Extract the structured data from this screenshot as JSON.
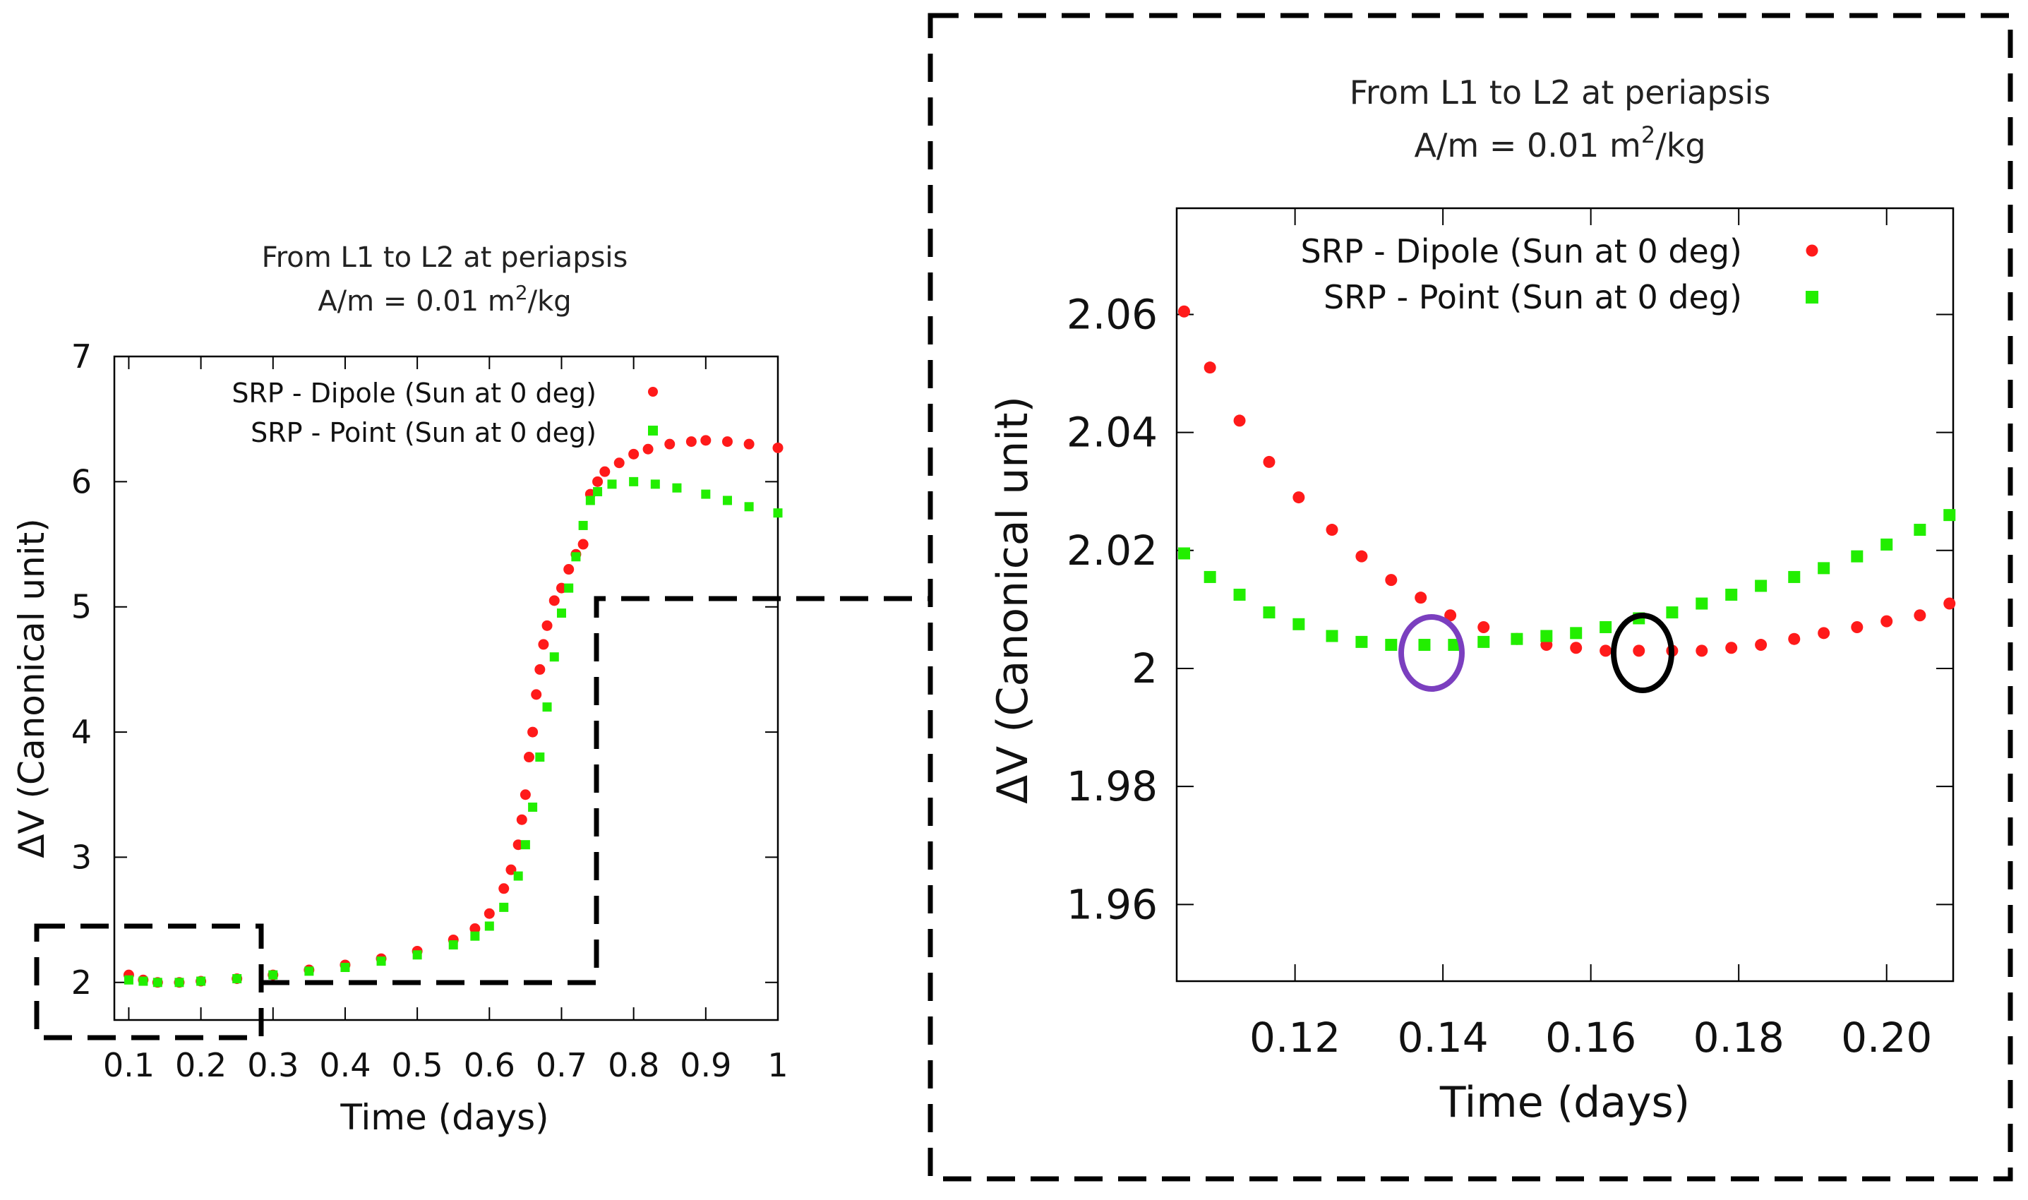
{
  "chart_data": [
    {
      "type": "scatter",
      "title": "From L1 to L2 at periapsis",
      "subtitle": {
        "prefix": "A/m = 0.01 m",
        "sup": "2",
        "suffix": "/kg"
      },
      "xlabel": "Time (days)",
      "ylabel": "ΔV (Canonical unit)",
      "xlim": [
        0.08,
        1.0
      ],
      "ylim": [
        1.7,
        7.0
      ],
      "xticks": [
        "0.1",
        "0.2",
        "0.3",
        "0.4",
        "0.5",
        "0.6",
        "0.7",
        "0.8",
        "0.9",
        "1"
      ],
      "yticks": [
        "2",
        "3",
        "4",
        "5",
        "6",
        "7"
      ],
      "legend_position": "top-right",
      "series": [
        {
          "name": "SRP - Dipole (Sun at 0 deg)",
          "marker": "circle",
          "color": "#ff1a1a",
          "x": [
            0.1,
            0.12,
            0.14,
            0.17,
            0.2,
            0.25,
            0.3,
            0.35,
            0.4,
            0.45,
            0.5,
            0.55,
            0.58,
            0.6,
            0.62,
            0.63,
            0.64,
            0.645,
            0.65,
            0.655,
            0.66,
            0.665,
            0.67,
            0.675,
            0.68,
            0.69,
            0.7,
            0.71,
            0.72,
            0.73,
            0.74,
            0.75,
            0.76,
            0.78,
            0.8,
            0.82,
            0.85,
            0.88,
            0.9,
            0.93,
            0.96,
            1.0
          ],
          "y": [
            2.06,
            2.02,
            2.0,
            2.0,
            2.01,
            2.03,
            2.06,
            2.1,
            2.14,
            2.19,
            2.25,
            2.34,
            2.43,
            2.55,
            2.75,
            2.9,
            3.1,
            3.3,
            3.5,
            3.8,
            4.0,
            4.3,
            4.5,
            4.7,
            4.85,
            5.05,
            5.15,
            5.3,
            5.42,
            5.5,
            5.9,
            6.0,
            6.08,
            6.15,
            6.22,
            6.26,
            6.3,
            6.32,
            6.33,
            6.32,
            6.3,
            6.27
          ]
        },
        {
          "name": "SRP - Point (Sun at 0 deg)",
          "marker": "square",
          "color": "#22ee00",
          "x": [
            0.1,
            0.12,
            0.14,
            0.17,
            0.2,
            0.25,
            0.3,
            0.35,
            0.4,
            0.45,
            0.5,
            0.55,
            0.58,
            0.6,
            0.62,
            0.64,
            0.65,
            0.66,
            0.67,
            0.68,
            0.69,
            0.7,
            0.71,
            0.72,
            0.73,
            0.74,
            0.75,
            0.77,
            0.8,
            0.83,
            0.86,
            0.9,
            0.93,
            0.96,
            1.0
          ],
          "y": [
            2.02,
            2.01,
            2.0,
            2.0,
            2.01,
            2.03,
            2.06,
            2.09,
            2.12,
            2.17,
            2.22,
            2.3,
            2.37,
            2.45,
            2.6,
            2.85,
            3.1,
            3.4,
            3.8,
            4.2,
            4.6,
            4.95,
            5.15,
            5.4,
            5.65,
            5.85,
            5.92,
            5.98,
            6.0,
            5.98,
            5.95,
            5.9,
            5.85,
            5.8,
            5.75
          ]
        }
      ]
    },
    {
      "type": "scatter",
      "title": "From L1 to L2 at periapsis",
      "subtitle": {
        "prefix": "A/m = 0.01 m",
        "sup": "2",
        "suffix": "/kg"
      },
      "xlabel": "Time (days)",
      "ylabel": "ΔV (Canonical unit)",
      "xlim": [
        0.104,
        0.209
      ],
      "ylim": [
        1.947,
        2.078
      ],
      "xticks": [
        "0.12",
        "0.14",
        "0.16",
        "0.18",
        "0.20"
      ],
      "yticks": [
        "1.96",
        "1.98",
        "2",
        "2.02",
        "2.04",
        "2.06"
      ],
      "legend_position": "top-right",
      "series": [
        {
          "name": "SRP - Dipole (Sun at 0 deg)",
          "marker": "circle",
          "color": "#ff1a1a",
          "x": [
            0.105,
            0.1085,
            0.1125,
            0.1165,
            0.1205,
            0.125,
            0.129,
            0.133,
            0.137,
            0.141,
            0.1455,
            0.15,
            0.154,
            0.158,
            0.162,
            0.1665,
            0.171,
            0.175,
            0.179,
            0.183,
            0.1875,
            0.1915,
            0.196,
            0.2,
            0.2045,
            0.2085
          ],
          "y": [
            2.0605,
            2.051,
            2.042,
            2.035,
            2.029,
            2.0235,
            2.019,
            2.015,
            2.012,
            2.009,
            2.007,
            2.005,
            2.004,
            2.0035,
            2.003,
            2.003,
            2.003,
            2.003,
            2.0035,
            2.004,
            2.005,
            2.006,
            2.007,
            2.008,
            2.009,
            2.011
          ]
        },
        {
          "name": "SRP - Point (Sun at 0 deg)",
          "marker": "square",
          "color": "#22ee00",
          "x": [
            0.105,
            0.1085,
            0.1125,
            0.1165,
            0.1205,
            0.125,
            0.129,
            0.133,
            0.1375,
            0.1415,
            0.1455,
            0.15,
            0.154,
            0.158,
            0.162,
            0.1665,
            0.171,
            0.175,
            0.179,
            0.183,
            0.1875,
            0.1915,
            0.196,
            0.2,
            0.2045,
            0.2085
          ],
          "y": [
            2.0195,
            2.0155,
            2.0125,
            2.0095,
            2.0075,
            2.0055,
            2.0045,
            2.004,
            2.004,
            2.004,
            2.0045,
            2.005,
            2.0055,
            2.006,
            2.007,
            2.0085,
            2.0095,
            2.011,
            2.0125,
            2.014,
            2.0155,
            2.017,
            2.019,
            2.021,
            2.0235,
            2.026
          ]
        }
      ]
    }
  ],
  "annotations": {
    "purple_circle_color": "#7b3fbf",
    "black_circle_color": "#000000",
    "dashed_box_color": "#000000"
  }
}
